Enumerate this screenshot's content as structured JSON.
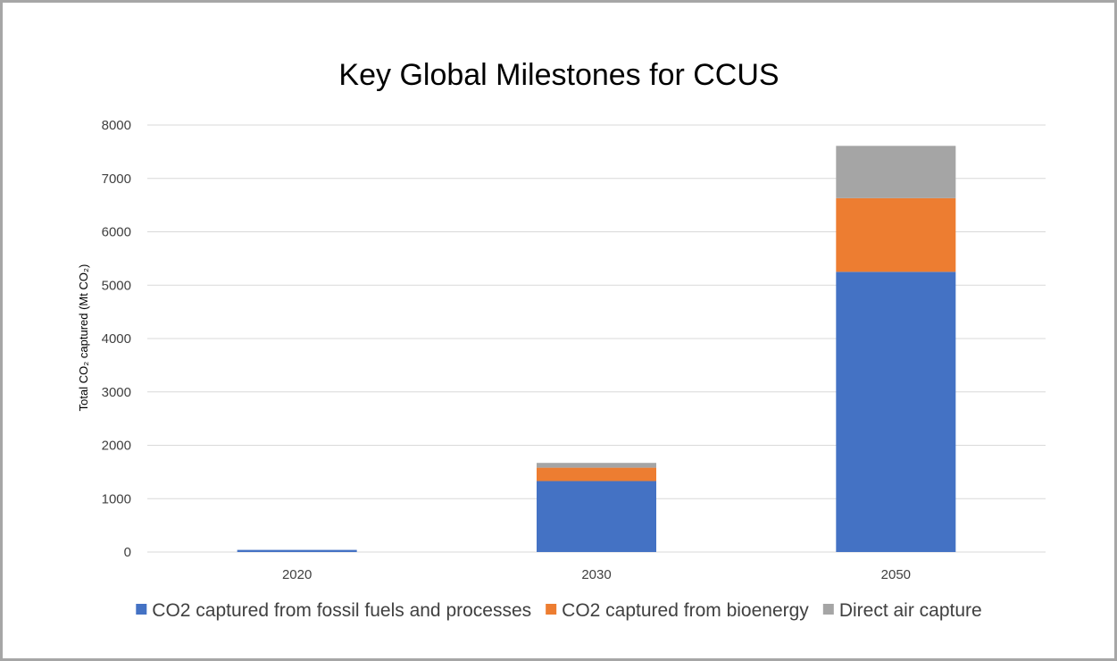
{
  "chart_data": {
    "type": "bar",
    "stacked": true,
    "title": "Key Global Milestones for CCUS",
    "xlabel": "",
    "ylabel": "Total CO₂ captured (Mt CO₂)",
    "categories": [
      "2020",
      "2030",
      "2050"
    ],
    "series": [
      {
        "name": "CO2 captured from fossil fuels and processes",
        "color": "#4472c4",
        "values": [
          40,
          1330,
          5250
        ]
      },
      {
        "name": "CO2 captured from bioenergy",
        "color": "#ed7d31",
        "values": [
          0,
          250,
          1380
        ]
      },
      {
        "name": "Direct air capture",
        "color": "#a5a5a5",
        "values": [
          0,
          90,
          980
        ]
      }
    ],
    "ylim": [
      0,
      8000
    ],
    "yticks": [
      "0",
      "1000",
      "2000",
      "3000",
      "4000",
      "5000",
      "6000",
      "7000",
      "8000"
    ],
    "grid": true,
    "legend": "bottom",
    "gridColor": "#d9d9d9"
  }
}
